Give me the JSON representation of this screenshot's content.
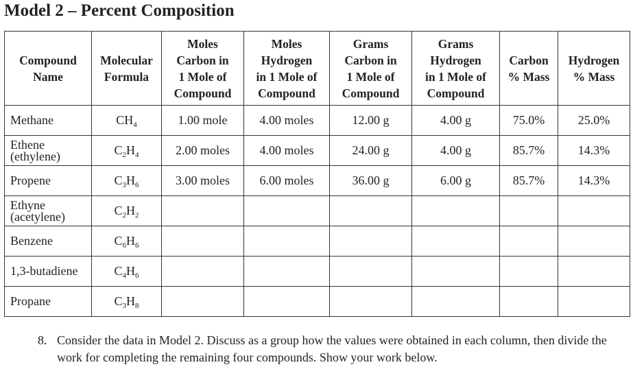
{
  "title": "Model 2 – Percent Composition",
  "table": {
    "headers": [
      [
        "Compound",
        "Name"
      ],
      [
        "Molecular",
        "Formula"
      ],
      [
        "Moles",
        "Carbon in",
        "1 Mole of",
        "Compound"
      ],
      [
        "Moles",
        "Hydrogen",
        "in 1 Mole of",
        "Compound"
      ],
      [
        "Grams",
        "Carbon in",
        "1 Mole of",
        "Compound"
      ],
      [
        "Grams",
        "Hydrogen",
        "in 1 Mole of",
        "Compound"
      ],
      [
        "Carbon",
        "% Mass"
      ],
      [
        "Hydrogen",
        "% Mass"
      ]
    ],
    "rows": [
      {
        "name": [
          "Methane"
        ],
        "formula": [
          {
            "s": "CH",
            "n": "4"
          }
        ],
        "cells": [
          "1.00 mole",
          "4.00 moles",
          "12.00 g",
          "4.00 g",
          "75.0%",
          "25.0%"
        ]
      },
      {
        "name": [
          "Ethene",
          "(ethylene)"
        ],
        "formula": [
          {
            "s": "C",
            "n": "2"
          },
          {
            "s": "H",
            "n": "4"
          }
        ],
        "cells": [
          "2.00 moles",
          "4.00 moles",
          "24.00 g",
          "4.00 g",
          "85.7%",
          "14.3%"
        ]
      },
      {
        "name": [
          "Propene"
        ],
        "formula": [
          {
            "s": "C",
            "n": "3"
          },
          {
            "s": "H",
            "n": "6"
          }
        ],
        "cells": [
          "3.00 moles",
          "6.00 moles",
          "36.00 g",
          "6.00 g",
          "85.7%",
          "14.3%"
        ]
      },
      {
        "name": [
          "Ethyne",
          "(acetylene)"
        ],
        "formula": [
          {
            "s": "C",
            "n": "2"
          },
          {
            "s": "H",
            "n": "2"
          }
        ]
      },
      {
        "name": [
          "Benzene"
        ],
        "formula": [
          {
            "s": "C",
            "n": "6"
          },
          {
            "s": "H",
            "n": "6"
          }
        ]
      },
      {
        "name": [
          "1,3-butadiene"
        ],
        "formula": [
          {
            "s": "C",
            "n": "4"
          },
          {
            "s": "H",
            "n": "6"
          }
        ]
      },
      {
        "name": [
          "Propane"
        ],
        "formula": [
          {
            "s": "C",
            "n": "3"
          },
          {
            "s": "H",
            "n": "8"
          }
        ]
      }
    ]
  },
  "question": {
    "number": "8.",
    "text": "Consider the data in Model 2. Discuss as a group how the values were obtained in each column, then divide the work for completing the remaining four compounds. Show your work below."
  }
}
